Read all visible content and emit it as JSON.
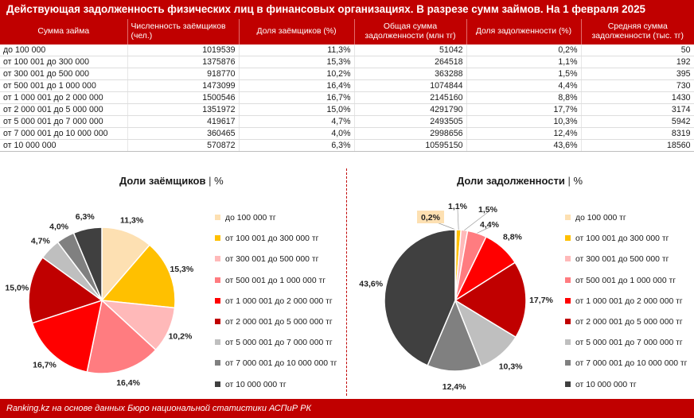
{
  "title": "Действующая задолженность физических лиц в финансовых организациях. В разрезе сумм займов. На 1 февраля 2025",
  "table": {
    "headers": [
      "Сумма займа",
      "Численность заёмщиков (чел.)",
      "Доля заёмщиков (%)",
      "Общая сумма задолженности (млн тг)",
      "Доля задолженности (%)",
      "Средняя сумма задолженности (тыс. тг)"
    ],
    "rows": [
      [
        "до 100 000",
        "1019539",
        "11,3%",
        "51042",
        "0,2%",
        "50"
      ],
      [
        "от 100 001 до 300 000",
        "1375876",
        "15,3%",
        "264518",
        "1,1%",
        "192"
      ],
      [
        "от 300 001 до 500 000",
        "918770",
        "10,2%",
        "363288",
        "1,5%",
        "395"
      ],
      [
        "от 500 001 до 1 000 000",
        "1473099",
        "16,4%",
        "1074844",
        "4,4%",
        "730"
      ],
      [
        "от 1 000 001 до 2 000 000",
        "1500546",
        "16,7%",
        "2145160",
        "8,8%",
        "1430"
      ],
      [
        "от 2 000 001 до 5 000 000",
        "1351972",
        "15,0%",
        "4291790",
        "17,7%",
        "3174"
      ],
      [
        "от 5 000 001 до 7 000 000",
        "419617",
        "4,7%",
        "2493505",
        "10,3%",
        "5942"
      ],
      [
        "от 7 000 001 до 10 000 000",
        "360465",
        "4,0%",
        "2998656",
        "12,4%",
        "8319"
      ],
      [
        "от 10 000 000",
        "570872",
        "6,3%",
        "10595150",
        "43,6%",
        "18560"
      ]
    ]
  },
  "chart_data": [
    {
      "type": "pie",
      "title": "Доли заёмщиков",
      "separator": "|",
      "unit": "%",
      "categories": [
        "до 100 000 тг",
        "от 100 001 до 300 000 тг",
        "от 300 001 до 500 000 тг",
        "от 500 001 до 1 000 000 тг",
        "от 1 000 001 до 2 000 000 тг",
        "от 2 000 001 до 5 000 000 тг",
        "от 5 000 001 до 7 000 000 тг",
        "от 7 000 001 до 10 000 000 тг",
        "от 10 000 000 тг"
      ],
      "values": [
        11.3,
        15.3,
        10.2,
        16.4,
        16.7,
        15.0,
        4.7,
        4.0,
        6.3
      ],
      "labels": [
        "11,3%",
        "15,3%",
        "10,2%",
        "16,4%",
        "16,7%",
        "15,0%",
        "4,7%",
        "4,0%",
        "6,3%"
      ],
      "colors": [
        "#fde0b2",
        "#ffc000",
        "#ffb9b9",
        "#ff7c80",
        "#ff0000",
        "#c00000",
        "#bfbfbf",
        "#808080",
        "#404040"
      ]
    },
    {
      "type": "pie",
      "title": "Доли задолженности",
      "separator": "|",
      "unit": "%",
      "categories": [
        "до 100 000 тг",
        "от 100 001 до 300 000 тг",
        "от 300 001 до 500 000 тг",
        "от 500 001 до 1 000 000 тг",
        "от 1 000 001 до 2 000 000 тг",
        "от 2 000 001 до 5 000 000 тг",
        "от 5 000 001 до 7 000 000 тг",
        "от 7 000 001 до 10 000 000 тг",
        "от 10 000 000 тг"
      ],
      "values": [
        0.2,
        1.1,
        1.5,
        4.4,
        8.8,
        17.7,
        10.3,
        12.4,
        43.6
      ],
      "labels": [
        "0,2%",
        "1,1%",
        "1,5%",
        "4,4%",
        "8,8%",
        "17,7%",
        "10,3%",
        "12,4%",
        "43,6%"
      ],
      "highlight_label_index": 0,
      "highlight_color": "#fde0b2",
      "colors": [
        "#fde0b2",
        "#ffc000",
        "#ffb9b9",
        "#ff7c80",
        "#ff0000",
        "#c00000",
        "#bfbfbf",
        "#808080",
        "#404040"
      ]
    }
  ],
  "footer": "Ranking.kz на основе данных Бюро национальной статистики АСПиР РК"
}
